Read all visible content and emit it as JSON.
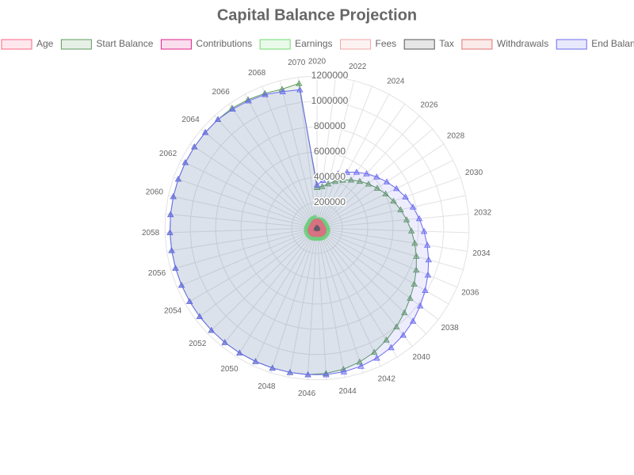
{
  "chart_data": {
    "type": "radar",
    "title": "Capital Balance Projection",
    "categories": [
      "2020",
      null,
      "2022",
      null,
      "2024",
      null,
      "2026",
      null,
      "2028",
      null,
      "2030",
      null,
      "2032",
      null,
      "2034",
      null,
      "2036",
      null,
      "2038",
      null,
      "2040",
      null,
      "2042",
      null,
      "2044",
      null,
      "2046",
      null,
      "2048",
      null,
      "2050",
      null,
      "2052",
      null,
      "2054",
      null,
      "2056",
      null,
      "2058",
      null,
      "2060",
      null,
      "2062",
      null,
      "2064",
      null,
      "2066",
      null,
      "2068",
      null,
      "2070"
    ],
    "ylim": [
      0,
      1200000
    ],
    "yticks": [
      200000,
      400000,
      600000,
      800000,
      1000000,
      1200000
    ],
    "grid": true,
    "series": [
      {
        "name": "Age",
        "color": "#ff6384",
        "values": [
          30,
          31,
          32,
          33,
          34,
          35,
          36,
          37,
          38,
          39,
          40,
          41,
          42,
          43,
          44,
          45,
          46,
          47,
          48,
          49,
          50,
          51,
          52,
          53,
          54,
          55,
          56,
          57,
          58,
          59,
          60,
          61,
          62,
          63,
          64,
          65,
          66,
          67,
          68,
          69,
          70,
          71,
          72,
          73,
          74,
          75,
          76,
          77,
          78,
          79,
          80
        ]
      },
      {
        "name": "Start Balance",
        "color": "#5e9a5e",
        "values": [
          320000,
          330000,
          360000,
          395000,
          430000,
          465000,
          500000,
          535000,
          570000,
          605000,
          640000,
          675000,
          710000,
          745000,
          780000,
          815000,
          850000,
          885000,
          920000,
          960000,
          1000000,
          1040000,
          1080000,
          1110000,
          1135000,
          1150000,
          1160000,
          1160000,
          1160000,
          1160000,
          1160000,
          1160000,
          1160000,
          1160000,
          1160000,
          1160000,
          1160000,
          1160000,
          1160000,
          1160000,
          1160000,
          1160000,
          1160000,
          1160000,
          1160000,
          1160000,
          1160000,
          1150000,
          1140000,
          1130000,
          1150000
        ]
      },
      {
        "name": "Contributions",
        "color": "#e0218a",
        "values": [
          12000,
          12000,
          12000,
          12000,
          12000,
          12000,
          12000,
          12000,
          12000,
          12000,
          12000,
          12000,
          12000,
          12000,
          12000,
          12000,
          12000,
          12000,
          12000,
          12000,
          12000,
          12000,
          12000,
          12000,
          12000,
          12000,
          12000,
          12000,
          12000,
          12000,
          12000,
          12000,
          12000,
          12000,
          12000,
          12000,
          12000,
          12000,
          12000,
          12000,
          12000,
          12000,
          12000,
          12000,
          12000,
          12000,
          12000,
          12000,
          12000,
          12000,
          12000
        ]
      },
      {
        "name": "Earnings",
        "color": "#6fdc6f",
        "values": [
          60000,
          62000,
          64000,
          66000,
          68000,
          70000,
          72000,
          74000,
          76000,
          78000,
          80000,
          80000,
          80000,
          80000,
          80000,
          80000,
          80000,
          80000,
          80000,
          80000,
          80000,
          80000,
          80000,
          80000,
          80000,
          80000,
          80000,
          80000,
          80000,
          80000,
          80000,
          80000,
          80000,
          80000,
          80000,
          80000,
          80000,
          80000,
          80000,
          80000,
          80000,
          80000,
          80000,
          80000,
          80000,
          80000,
          80000,
          80000,
          80000,
          80000,
          80000
        ]
      },
      {
        "name": "Fees",
        "color": "#f4a6a6",
        "values": [
          5000,
          5000,
          5000,
          5000,
          5000,
          5000,
          5000,
          5000,
          5000,
          5000,
          5000,
          5000,
          5000,
          5000,
          5000,
          5000,
          5000,
          5000,
          5000,
          5000,
          5000,
          5000,
          5000,
          5000,
          5000,
          5000,
          5000,
          5000,
          5000,
          5000,
          5000,
          5000,
          5000,
          5000,
          5000,
          5000,
          5000,
          5000,
          5000,
          5000,
          5000,
          5000,
          5000,
          5000,
          5000,
          5000,
          5000,
          5000,
          5000,
          5000,
          5000
        ]
      },
      {
        "name": "Tax",
        "color": "#555555",
        "values": [
          8000,
          8000,
          8000,
          8000,
          8000,
          8000,
          8000,
          8000,
          8000,
          8000,
          8000,
          8000,
          8000,
          8000,
          8000,
          8000,
          8000,
          8000,
          8000,
          8000,
          8000,
          8000,
          8000,
          8000,
          8000,
          8000,
          8000,
          8000,
          8000,
          8000,
          8000,
          8000,
          8000,
          8000,
          8000,
          8000,
          8000,
          8000,
          8000,
          8000,
          8000,
          8000,
          8000,
          8000,
          8000,
          8000,
          8000,
          8000,
          8000,
          8000,
          8000
        ]
      },
      {
        "name": "Withdrawals",
        "color": "#e57373",
        "values": [
          50000,
          50000,
          50000,
          50000,
          50000,
          50000,
          50000,
          50000,
          50000,
          50000,
          50000,
          50000,
          50000,
          50000,
          50000,
          50000,
          50000,
          50000,
          50000,
          50000,
          50000,
          50000,
          50000,
          50000,
          50000,
          50000,
          50000,
          50000,
          50000,
          50000,
          50000,
          50000,
          50000,
          50000,
          50000,
          50000,
          50000,
          50000,
          50000,
          50000,
          50000,
          50000,
          50000,
          50000,
          50000,
          50000,
          50000,
          50000,
          50000,
          50000,
          50000
        ]
      },
      {
        "name": "End Balance",
        "color": "#6b6bf0",
        "values": [
          340000,
          380000,
          420000,
          460000,
          500000,
          540000,
          580000,
          620000,
          660000,
          700000,
          740000,
          775000,
          810000,
          845000,
          880000,
          915000,
          950000,
          985000,
          1020000,
          1055000,
          1085000,
          1110000,
          1130000,
          1145000,
          1155000,
          1160000,
          1160000,
          1160000,
          1160000,
          1160000,
          1160000,
          1160000,
          1160000,
          1160000,
          1160000,
          1160000,
          1160000,
          1160000,
          1160000,
          1160000,
          1160000,
          1160000,
          1160000,
          1160000,
          1160000,
          1160000,
          1150000,
          1140000,
          1130000,
          1110000,
          1100000
        ]
      }
    ]
  }
}
